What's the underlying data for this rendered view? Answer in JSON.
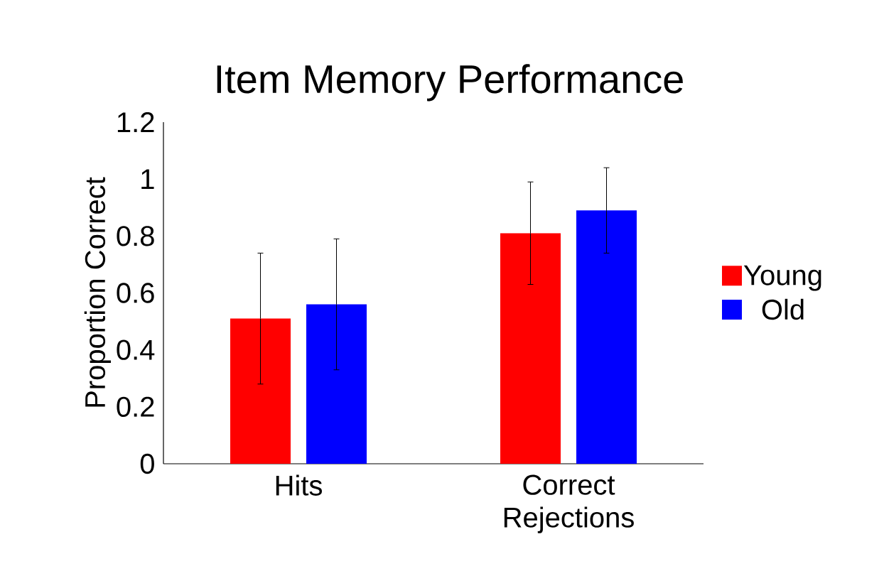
{
  "chart_data": {
    "type": "bar",
    "title": "Item Memory Performance",
    "ylabel": "Proportion Correct",
    "categories": [
      "Hits",
      "Correct Rejections"
    ],
    "series": [
      {
        "name": "Young",
        "color": "#ff0000",
        "values": [
          0.51,
          0.81
        ],
        "errors": [
          0.23,
          0.18
        ]
      },
      {
        "name": "Old",
        "color": "#0000ff",
        "values": [
          0.56,
          0.89
        ],
        "errors": [
          0.23,
          0.15
        ]
      }
    ],
    "ylim": [
      0,
      1.2
    ],
    "yticks": [
      0,
      0.2,
      0.4,
      0.6,
      0.8,
      1,
      1.2
    ],
    "grid": false,
    "legend": "right"
  }
}
